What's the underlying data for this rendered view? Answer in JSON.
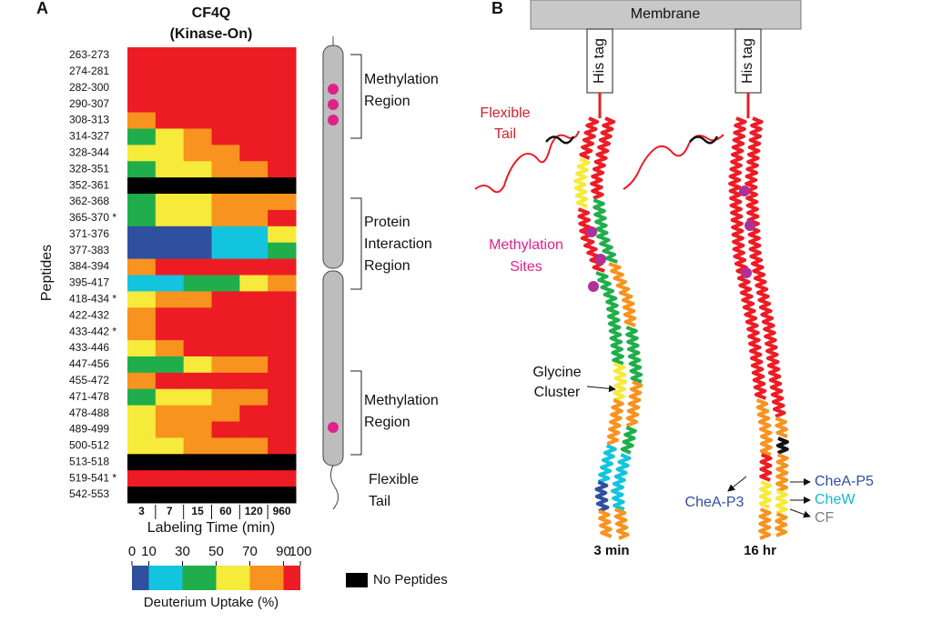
{
  "chart_data": {
    "type": "heatmap",
    "title": "CF4Q",
    "subtitle": "(Kinase-On)",
    "x_label": "Labeling Time (min)",
    "y_label": "Peptides",
    "columns": [
      "3",
      "7",
      "15",
      "60",
      "120",
      "960"
    ],
    "categories": [
      "263-273",
      "274-281",
      "282-300",
      "290-307",
      "308-313",
      "314-327",
      "328-344",
      "328-351",
      "352-361",
      "362-368",
      "365-370 *",
      "371-376",
      "377-383",
      "384-394",
      "395-417",
      "418-434 *",
      "422-432",
      "433-442 *",
      "433-446",
      "447-456",
      "455-472",
      "471-478",
      "478-488",
      "489-499",
      "500-512",
      "513-518",
      "519-541 *",
      "542-553"
    ],
    "values": [
      [
        95,
        95,
        95,
        95,
        95,
        95
      ],
      [
        95,
        95,
        95,
        95,
        95,
        95
      ],
      [
        95,
        95,
        95,
        95,
        95,
        95
      ],
      [
        95,
        95,
        95,
        95,
        95,
        95
      ],
      [
        80,
        95,
        95,
        95,
        95,
        95
      ],
      [
        40,
        60,
        80,
        95,
        95,
        95
      ],
      [
        60,
        60,
        80,
        80,
        95,
        95
      ],
      [
        40,
        60,
        60,
        80,
        80,
        95
      ],
      [
        null,
        null,
        null,
        null,
        null,
        null
      ],
      [
        40,
        60,
        60,
        80,
        80,
        80
      ],
      [
        40,
        60,
        60,
        80,
        80,
        95
      ],
      [
        5,
        5,
        5,
        20,
        20,
        60
      ],
      [
        5,
        5,
        5,
        20,
        20,
        40
      ],
      [
        80,
        95,
        95,
        95,
        95,
        95
      ],
      [
        20,
        20,
        40,
        40,
        60,
        80
      ],
      [
        60,
        80,
        80,
        95,
        95,
        95
      ],
      [
        80,
        95,
        95,
        95,
        95,
        95
      ],
      [
        80,
        95,
        95,
        95,
        95,
        95
      ],
      [
        60,
        80,
        95,
        95,
        95,
        95
      ],
      [
        40,
        40,
        60,
        80,
        80,
        95
      ],
      [
        80,
        95,
        95,
        95,
        95,
        95
      ],
      [
        40,
        60,
        60,
        80,
        80,
        95
      ],
      [
        60,
        80,
        80,
        80,
        95,
        95
      ],
      [
        60,
        80,
        80,
        95,
        95,
        95
      ],
      [
        60,
        60,
        80,
        80,
        80,
        95
      ],
      [
        null,
        null,
        null,
        null,
        null,
        null
      ],
      [
        95,
        95,
        95,
        95,
        95,
        95
      ],
      [
        null,
        null,
        null,
        null,
        null,
        null
      ]
    ],
    "colorscale": {
      "title": "Deuterium Uptake (%)",
      "ticks": [
        0,
        10,
        30,
        50,
        70,
        90,
        100
      ],
      "colors": [
        "#2f4f9f",
        "#12c4de",
        "#1fae4b",
        "#f6ea3a",
        "#f7931e",
        "#ed1c24"
      ]
    },
    "null_color": "#000000",
    "null_label": "No Peptides"
  },
  "panel_labels": [
    "A",
    "B"
  ],
  "domains": {
    "methylation_1": [
      "Methylation",
      "Region"
    ],
    "interaction": [
      "Protein",
      "Interaction",
      "Region"
    ],
    "methylation_2": [
      "Methylation",
      "Region"
    ],
    "tail": [
      "Flexible",
      "Tail"
    ]
  },
  "structure": {
    "membrane": "Membrane",
    "his_tag": "His tag",
    "flexible_tail": [
      "Flexible",
      "Tail"
    ],
    "methylation_sites": [
      "Methylation",
      "Sites"
    ],
    "glycine": [
      "Glycine",
      "Cluster"
    ],
    "time_1": "3 min",
    "time_2": "16 hr",
    "chea_p3": "CheA-P3",
    "chea_p5": "CheA-P5",
    "chew": "CheW",
    "cf": "CF"
  }
}
